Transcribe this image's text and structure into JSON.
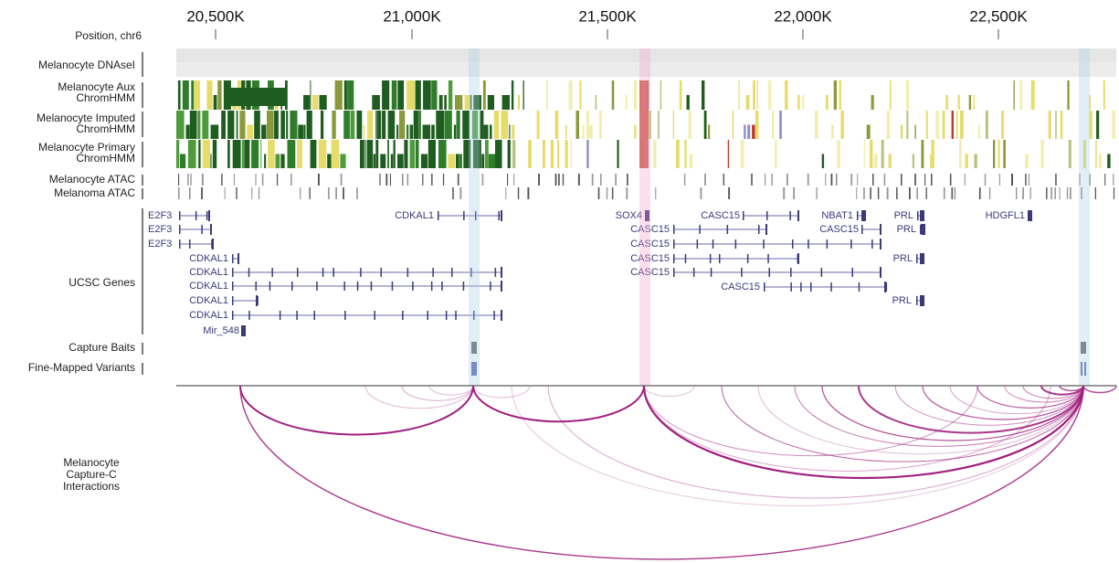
{
  "axis": {
    "label": "Position, chr6",
    "ticks": [
      "20,500K",
      "21,000K",
      "21,500K",
      "22,000K",
      "22,500K"
    ]
  },
  "tracks": [
    {
      "lines": [
        "Melanocyte DNAseI"
      ]
    },
    {
      "lines": [
        "Melanocyte Aux",
        "ChromHMM"
      ]
    },
    {
      "lines": [
        "Melanocyte Imputed",
        "ChromHMM"
      ]
    },
    {
      "lines": [
        "Melanocyte Primary",
        "ChromHMM"
      ]
    },
    {
      "lines": [
        "Melanocyte ATAC"
      ]
    },
    {
      "lines": [
        "Melanoma ATAC"
      ]
    },
    {
      "lines": [
        "UCSC Genes"
      ]
    },
    {
      "lines": [
        "Capture Baits"
      ]
    },
    {
      "lines": [
        "Fine-Mapped Variants"
      ]
    },
    {
      "lines": [
        "Melanocyte",
        "Capture-C",
        "Interactions"
      ]
    }
  ],
  "genes": [
    "E2F3",
    "E2F3",
    "E2F3",
    "CDKAL1",
    "SOX4",
    "CASC15",
    "NBAT1",
    "PRL",
    "HDGFL1",
    "CDKAL1",
    "CDKAL1",
    "CDKAL1",
    "CDKAL1",
    "CDKAL1",
    "Mir_548",
    "CASC15",
    "CASC15",
    "PRL",
    "CASC15",
    "CASC15",
    "PRL",
    "CASC15",
    "CASC15",
    "PRL"
  ]
}
